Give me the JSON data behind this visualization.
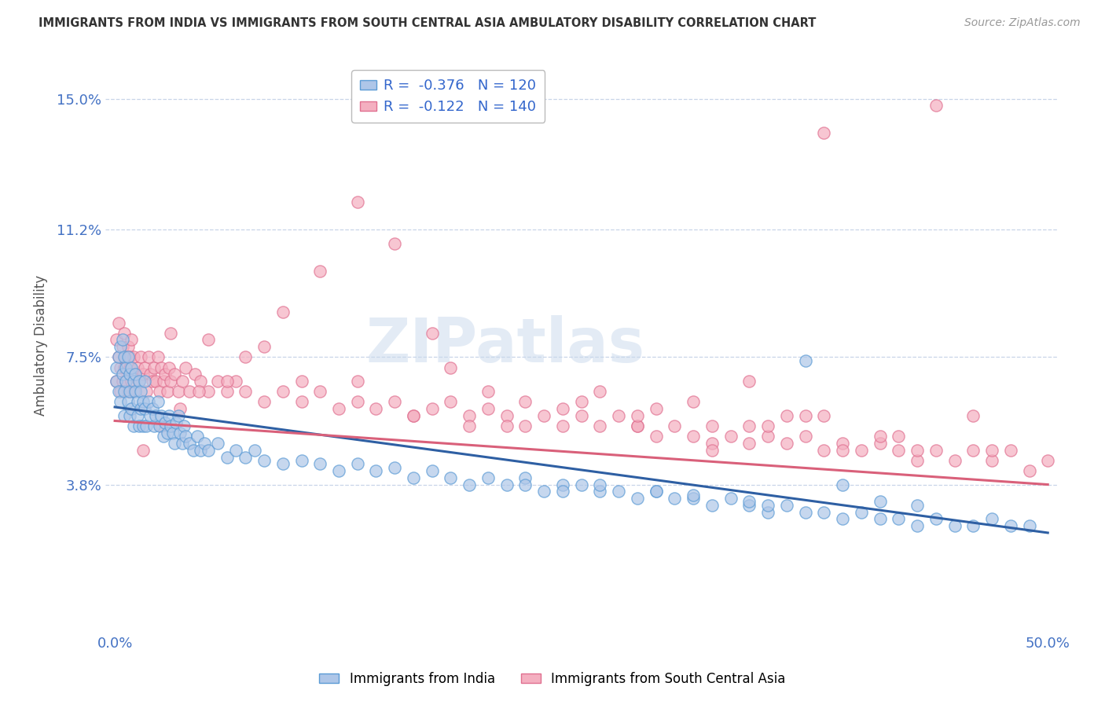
{
  "title": "IMMIGRANTS FROM INDIA VS IMMIGRANTS FROM SOUTH CENTRAL ASIA AMBULATORY DISABILITY CORRELATION CHART",
  "source": "Source: ZipAtlas.com",
  "ylabel": "Ambulatory Disability",
  "xlim": [
    -0.005,
    0.505
  ],
  "ylim": [
    -0.005,
    0.162
  ],
  "yticks": [
    0.038,
    0.075,
    0.112,
    0.15
  ],
  "ytick_labels": [
    "3.8%",
    "7.5%",
    "11.2%",
    "15.0%"
  ],
  "xticks": [
    0.0,
    0.5
  ],
  "xtick_labels": [
    "0.0%",
    "50.0%"
  ],
  "series1_name": "Immigrants from India",
  "series2_name": "Immigrants from South Central Asia",
  "series1_color": "#aec6e8",
  "series2_color": "#f4afc0",
  "series1_edge": "#5b9bd5",
  "series2_edge": "#e07090",
  "trendline1_color": "#2e5fa3",
  "trendline2_color": "#d9607a",
  "background_color": "#ffffff",
  "grid_color": "#c8d4e8",
  "title_color": "#333333",
  "axis_label_color": "#4472c4",
  "watermark": "ZIPatlas",
  "legend_label1": "R =  -0.376   N = 120",
  "legend_label2": "R =  -0.122   N = 140",
  "trendline1_x0": 0.0,
  "trendline1_y0": 0.0605,
  "trendline1_x1": 0.5,
  "trendline1_y1": 0.024,
  "trendline2_x0": 0.0,
  "trendline2_y0": 0.0565,
  "trendline2_x1": 0.5,
  "trendline2_y1": 0.038,
  "s1_x": [
    0.001,
    0.001,
    0.002,
    0.002,
    0.003,
    0.003,
    0.004,
    0.004,
    0.005,
    0.005,
    0.005,
    0.006,
    0.006,
    0.007,
    0.007,
    0.008,
    0.008,
    0.008,
    0.009,
    0.009,
    0.01,
    0.01,
    0.011,
    0.011,
    0.012,
    0.012,
    0.013,
    0.013,
    0.014,
    0.014,
    0.015,
    0.015,
    0.016,
    0.016,
    0.017,
    0.018,
    0.019,
    0.02,
    0.021,
    0.022,
    0.023,
    0.024,
    0.025,
    0.026,
    0.027,
    0.028,
    0.029,
    0.03,
    0.031,
    0.032,
    0.033,
    0.034,
    0.035,
    0.036,
    0.037,
    0.038,
    0.04,
    0.042,
    0.044,
    0.046,
    0.048,
    0.05,
    0.055,
    0.06,
    0.065,
    0.07,
    0.075,
    0.08,
    0.09,
    0.1,
    0.11,
    0.12,
    0.13,
    0.14,
    0.15,
    0.16,
    0.17,
    0.18,
    0.19,
    0.2,
    0.21,
    0.22,
    0.23,
    0.24,
    0.25,
    0.26,
    0.27,
    0.28,
    0.29,
    0.3,
    0.31,
    0.32,
    0.33,
    0.34,
    0.35,
    0.36,
    0.37,
    0.38,
    0.39,
    0.4,
    0.41,
    0.42,
    0.43,
    0.44,
    0.45,
    0.46,
    0.47,
    0.48,
    0.49,
    0.34,
    0.41,
    0.37,
    0.43,
    0.39,
    0.35,
    0.31,
    0.29,
    0.26,
    0.24,
    0.22
  ],
  "s1_y": [
    0.072,
    0.068,
    0.075,
    0.065,
    0.078,
    0.062,
    0.08,
    0.07,
    0.075,
    0.065,
    0.058,
    0.072,
    0.068,
    0.075,
    0.062,
    0.07,
    0.065,
    0.058,
    0.072,
    0.06,
    0.068,
    0.055,
    0.065,
    0.07,
    0.062,
    0.058,
    0.068,
    0.055,
    0.065,
    0.06,
    0.062,
    0.055,
    0.068,
    0.06,
    0.055,
    0.062,
    0.058,
    0.06,
    0.055,
    0.058,
    0.062,
    0.055,
    0.058,
    0.052,
    0.056,
    0.053,
    0.058,
    0.055,
    0.053,
    0.05,
    0.056,
    0.058,
    0.053,
    0.05,
    0.055,
    0.052,
    0.05,
    0.048,
    0.052,
    0.048,
    0.05,
    0.048,
    0.05,
    0.046,
    0.048,
    0.046,
    0.048,
    0.045,
    0.044,
    0.045,
    0.044,
    0.042,
    0.044,
    0.042,
    0.043,
    0.04,
    0.042,
    0.04,
    0.038,
    0.04,
    0.038,
    0.04,
    0.036,
    0.038,
    0.038,
    0.036,
    0.036,
    0.034,
    0.036,
    0.034,
    0.034,
    0.032,
    0.034,
    0.032,
    0.03,
    0.032,
    0.03,
    0.03,
    0.028,
    0.03,
    0.028,
    0.028,
    0.026,
    0.028,
    0.026,
    0.026,
    0.028,
    0.026,
    0.026,
    0.033,
    0.033,
    0.074,
    0.032,
    0.038,
    0.032,
    0.035,
    0.036,
    0.038,
    0.036,
    0.038
  ],
  "s2_x": [
    0.001,
    0.001,
    0.002,
    0.002,
    0.003,
    0.003,
    0.004,
    0.004,
    0.005,
    0.005,
    0.006,
    0.006,
    0.007,
    0.007,
    0.008,
    0.008,
    0.009,
    0.009,
    0.01,
    0.01,
    0.011,
    0.012,
    0.013,
    0.014,
    0.015,
    0.016,
    0.017,
    0.018,
    0.019,
    0.02,
    0.021,
    0.022,
    0.023,
    0.024,
    0.025,
    0.026,
    0.027,
    0.028,
    0.029,
    0.03,
    0.032,
    0.034,
    0.036,
    0.038,
    0.04,
    0.043,
    0.046,
    0.05,
    0.055,
    0.06,
    0.065,
    0.07,
    0.08,
    0.09,
    0.1,
    0.11,
    0.12,
    0.13,
    0.14,
    0.15,
    0.16,
    0.17,
    0.18,
    0.19,
    0.2,
    0.21,
    0.22,
    0.23,
    0.24,
    0.25,
    0.26,
    0.27,
    0.28,
    0.29,
    0.3,
    0.31,
    0.32,
    0.33,
    0.34,
    0.35,
    0.36,
    0.37,
    0.38,
    0.39,
    0.4,
    0.41,
    0.42,
    0.43,
    0.44,
    0.45,
    0.46,
    0.47,
    0.48,
    0.49,
    0.5,
    0.32,
    0.28,
    0.36,
    0.25,
    0.2,
    0.38,
    0.42,
    0.16,
    0.13,
    0.1,
    0.07,
    0.05,
    0.03,
    0.28,
    0.34,
    0.38,
    0.44,
    0.46,
    0.34,
    0.31,
    0.43,
    0.47,
    0.37,
    0.41,
    0.35,
    0.39,
    0.29,
    0.26,
    0.24,
    0.22,
    0.21,
    0.19,
    0.17,
    0.32,
    0.18,
    0.15,
    0.13,
    0.11,
    0.09,
    0.08,
    0.06,
    0.045,
    0.035,
    0.025,
    0.015
  ],
  "s2_y": [
    0.08,
    0.068,
    0.075,
    0.085,
    0.072,
    0.065,
    0.078,
    0.068,
    0.082,
    0.072,
    0.075,
    0.068,
    0.078,
    0.065,
    0.075,
    0.072,
    0.068,
    0.08,
    0.075,
    0.065,
    0.07,
    0.072,
    0.068,
    0.075,
    0.07,
    0.072,
    0.065,
    0.075,
    0.07,
    0.068,
    0.072,
    0.068,
    0.075,
    0.065,
    0.072,
    0.068,
    0.07,
    0.065,
    0.072,
    0.068,
    0.07,
    0.065,
    0.068,
    0.072,
    0.065,
    0.07,
    0.068,
    0.065,
    0.068,
    0.065,
    0.068,
    0.065,
    0.062,
    0.065,
    0.062,
    0.065,
    0.06,
    0.062,
    0.06,
    0.062,
    0.058,
    0.06,
    0.062,
    0.058,
    0.06,
    0.058,
    0.055,
    0.058,
    0.055,
    0.058,
    0.055,
    0.058,
    0.055,
    0.052,
    0.055,
    0.052,
    0.055,
    0.052,
    0.05,
    0.052,
    0.05,
    0.052,
    0.048,
    0.05,
    0.048,
    0.05,
    0.048,
    0.045,
    0.048,
    0.045,
    0.048,
    0.045,
    0.048,
    0.042,
    0.045,
    0.05,
    0.055,
    0.058,
    0.062,
    0.065,
    0.058,
    0.052,
    0.058,
    0.068,
    0.068,
    0.075,
    0.08,
    0.082,
    0.058,
    0.055,
    0.14,
    0.148,
    0.058,
    0.068,
    0.062,
    0.048,
    0.048,
    0.058,
    0.052,
    0.055,
    0.048,
    0.06,
    0.065,
    0.06,
    0.062,
    0.055,
    0.055,
    0.082,
    0.048,
    0.072,
    0.108,
    0.12,
    0.1,
    0.088,
    0.078,
    0.068,
    0.065,
    0.06,
    0.055,
    0.048
  ]
}
